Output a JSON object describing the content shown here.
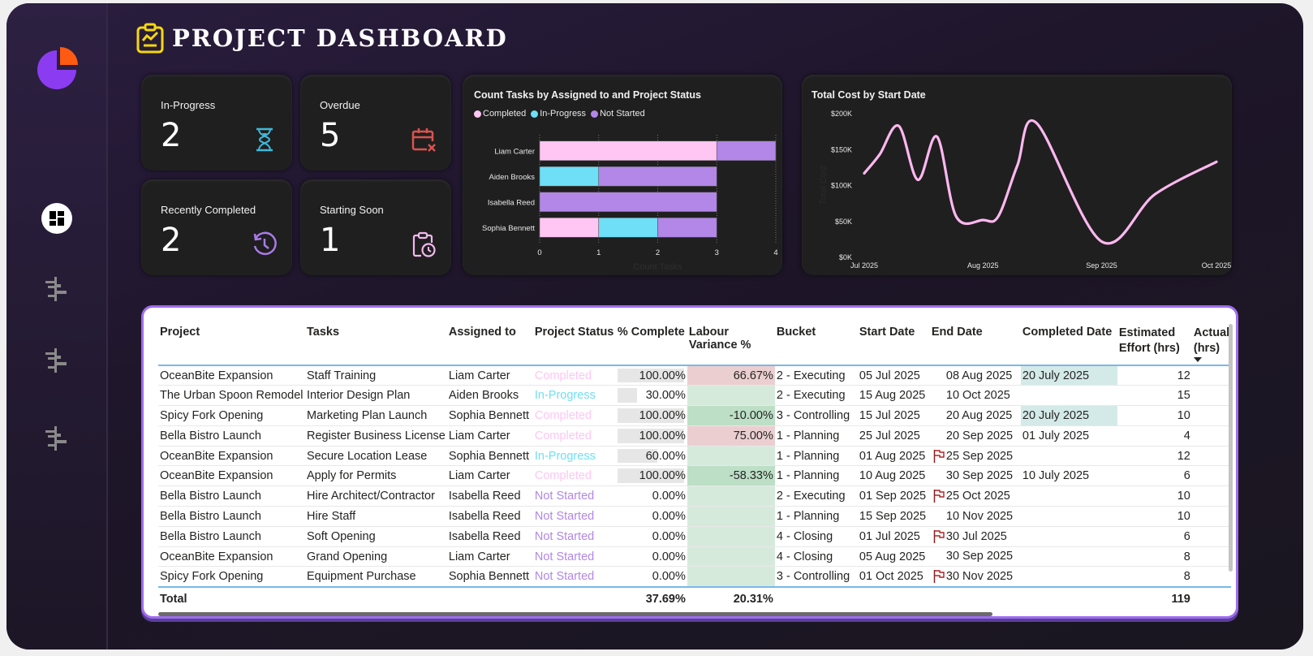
{
  "header": {
    "title": "PROJECT DASHBOARD",
    "icon": "clipboard-chart-icon"
  },
  "sidebar": {
    "logo": "pie-chart-logo",
    "items": [
      {
        "name": "dashboard",
        "icon": "dashboard-grid-icon",
        "active": true
      },
      {
        "name": "gantt-1",
        "icon": "gantt-icon",
        "active": false
      },
      {
        "name": "gantt-2",
        "icon": "gantt-icon",
        "active": false
      },
      {
        "name": "gantt-3",
        "icon": "gantt-icon",
        "active": false
      }
    ]
  },
  "kpis": [
    {
      "label": "In-Progress",
      "value": "2",
      "icon": "hourglass-icon",
      "color": "#3fb8d8"
    },
    {
      "label": "Overdue",
      "value": "5",
      "icon": "calendar-x-icon",
      "color": "#d9534f"
    },
    {
      "label": "Recently Completed",
      "value": "2",
      "icon": "history-clock-icon",
      "color": "#a97ce8"
    },
    {
      "label": "Starting Soon",
      "value": "1",
      "icon": "clipboard-clock-icon",
      "color": "#f2b8ee"
    }
  ],
  "colors": {
    "completed": "#ffc6f4",
    "in_progress": "#6edff6",
    "not_started": "#b287e8",
    "accent": "#9f6cf0",
    "line": "#ffb8f0"
  },
  "chart_data": [
    {
      "type": "bar",
      "orientation": "horizontal-stacked",
      "title": "Count Tasks by Assigned to and Project Status",
      "categories": [
        "Liam Carter",
        "Aiden Brooks",
        "Isabella Reed",
        "Sophia Bennett"
      ],
      "series": [
        {
          "name": "Completed",
          "values": [
            3,
            0,
            0,
            1
          ]
        },
        {
          "name": "In-Progress",
          "values": [
            0,
            1,
            0,
            1
          ]
        },
        {
          "name": "Not Started",
          "values": [
            1,
            2,
            3,
            1
          ]
        }
      ],
      "xlabel": "Count Tasks",
      "ylabel": "",
      "xlim": [
        0,
        4
      ],
      "xticks": [
        "0",
        "1",
        "2",
        "3",
        "4"
      ],
      "legend": "top-left",
      "grid": true
    },
    {
      "type": "line",
      "title": "Total Cost by Start Date",
      "xlabel": "",
      "ylabel": "Total Cost",
      "x": [
        "2025-07-01",
        "2025-07-05",
        "2025-07-10",
        "2025-07-15",
        "2025-07-20",
        "2025-07-25",
        "2025-08-01",
        "2025-08-05",
        "2025-08-10",
        "2025-08-15",
        "2025-09-01",
        "2025-09-15",
        "2025-10-01"
      ],
      "series": [
        {
          "name": "Total Cost",
          "values": [
            117000,
            143000,
            183000,
            108000,
            168000,
            57000,
            52000,
            57000,
            128000,
            187000,
            22000,
            88000,
            133000
          ]
        }
      ],
      "xticks": [
        "Jul 2025",
        "Aug 2025",
        "Sep 2025",
        "Oct 2025"
      ],
      "yticks": [
        "$0K",
        "$50K",
        "$100K",
        "$150K",
        "$200K"
      ],
      "ylim": [
        0,
        200000
      ],
      "grid": false
    }
  ],
  "table": {
    "columns": [
      "Project",
      "Tasks",
      "Assigned to",
      "Project Status",
      "% Complete",
      "Labour Variance %",
      "Bucket",
      "Start Date",
      "End Date",
      "Completed Date",
      "Estimated Effort (hrs)",
      "Actual (hrs)"
    ],
    "rows": [
      {
        "project": "OceanBite Expansion",
        "task": "Staff Training",
        "assigned": "Liam Carter",
        "status": "Completed",
        "pct": "100.00%",
        "pct_value": 1.0,
        "variance": "66.67%",
        "variance_tone": "red",
        "bucket": "2 - Executing",
        "start": "05 Jul 2025",
        "flag": false,
        "end": "08 Aug 2025",
        "completed": "20 July 2025",
        "completed_tone": "teal",
        "effort": "12"
      },
      {
        "project": "The Urban Spoon Remodel",
        "task": "Interior Design Plan",
        "assigned": "Aiden Brooks",
        "status": "In-Progress",
        "pct": "30.00%",
        "pct_value": 0.3,
        "variance": "",
        "variance_tone": "green",
        "bucket": "2 - Executing",
        "start": "15 Aug 2025",
        "flag": false,
        "end": "10 Oct 2025",
        "completed": "",
        "completed_tone": "",
        "effort": "15"
      },
      {
        "project": "Spicy Fork Opening",
        "task": "Marketing Plan Launch",
        "assigned": "Sophia Bennett",
        "status": "Completed",
        "pct": "100.00%",
        "pct_value": 1.0,
        "variance": "-10.00%",
        "variance_tone": "dkgreen",
        "bucket": "3 - Controlling",
        "start": "15 Jul 2025",
        "flag": false,
        "end": "20 Aug 2025",
        "completed": "20 July 2025",
        "completed_tone": "teal",
        "effort": "10"
      },
      {
        "project": "Bella Bistro Launch",
        "task": "Register Business License",
        "assigned": "Liam Carter",
        "status": "Completed",
        "pct": "100.00%",
        "pct_value": 1.0,
        "variance": "75.00%",
        "variance_tone": "red",
        "bucket": "1 - Planning",
        "start": "25 Jul 2025",
        "flag": false,
        "end": "20 Sep 2025",
        "completed": "01 July 2025",
        "completed_tone": "",
        "effort": "4"
      },
      {
        "project": "OceanBite Expansion",
        "task": "Secure Location Lease",
        "assigned": "Sophia Bennett",
        "status": "In-Progress",
        "pct": "60.00%",
        "pct_value": 0.6,
        "variance": "",
        "variance_tone": "green",
        "bucket": "1 - Planning",
        "start": "01 Aug 2025",
        "flag": true,
        "end": "25 Sep 2025",
        "completed": "",
        "completed_tone": "",
        "effort": "12"
      },
      {
        "project": "OceanBite Expansion",
        "task": "Apply for Permits",
        "assigned": "Liam Carter",
        "status": "Completed",
        "pct": "100.00%",
        "pct_value": 1.0,
        "variance": "-58.33%",
        "variance_tone": "dkgreen",
        "bucket": "1 - Planning",
        "start": "10 Aug 2025",
        "flag": false,
        "end": "30 Sep 2025",
        "completed": "10 July 2025",
        "completed_tone": "",
        "effort": "6"
      },
      {
        "project": "Bella Bistro Launch",
        "task": "Hire Architect/Contractor",
        "assigned": "Isabella Reed",
        "status": "Not Started",
        "pct": "0.00%",
        "pct_value": 0,
        "variance": "",
        "variance_tone": "green",
        "bucket": "2 - Executing",
        "start": "01 Sep 2025",
        "flag": true,
        "end": "25 Oct 2025",
        "completed": "",
        "completed_tone": "",
        "effort": "10"
      },
      {
        "project": "Bella Bistro Launch",
        "task": "Hire Staff",
        "assigned": "Isabella Reed",
        "status": "Not Started",
        "pct": "0.00%",
        "pct_value": 0,
        "variance": "",
        "variance_tone": "green",
        "bucket": "1 - Planning",
        "start": "15 Sep 2025",
        "flag": false,
        "end": "10 Nov 2025",
        "completed": "",
        "completed_tone": "",
        "effort": "10"
      },
      {
        "project": "Bella Bistro Launch",
        "task": "Soft Opening",
        "assigned": "Isabella Reed",
        "status": "Not Started",
        "pct": "0.00%",
        "pct_value": 0,
        "variance": "",
        "variance_tone": "green",
        "bucket": "4 - Closing",
        "start": "01 Jul 2025",
        "flag": true,
        "end": "30 Jul 2025",
        "completed": "",
        "completed_tone": "",
        "effort": "6"
      },
      {
        "project": "OceanBite Expansion",
        "task": "Grand Opening",
        "assigned": "Liam Carter",
        "status": "Not Started",
        "pct": "0.00%",
        "pct_value": 0,
        "variance": "",
        "variance_tone": "green",
        "bucket": "4 - Closing",
        "start": "05 Aug 2025",
        "flag": false,
        "end": "30 Sep 2025",
        "completed": "",
        "completed_tone": "",
        "effort": "8"
      },
      {
        "project": "Spicy Fork Opening",
        "task": "Equipment Purchase",
        "assigned": "Sophia Bennett",
        "status": "Not Started",
        "pct": "0.00%",
        "pct_value": 0,
        "variance": "",
        "variance_tone": "green",
        "bucket": "3 - Controlling",
        "start": "01 Oct 2025",
        "flag": true,
        "end": "30 Nov 2025",
        "completed": "",
        "completed_tone": "",
        "effort": "8"
      }
    ],
    "total": {
      "label": "Total",
      "pct": "37.69%",
      "variance": "20.31%",
      "effort": "119"
    },
    "sort_column": "Actual (hrs)",
    "sort_direction": "descending"
  }
}
